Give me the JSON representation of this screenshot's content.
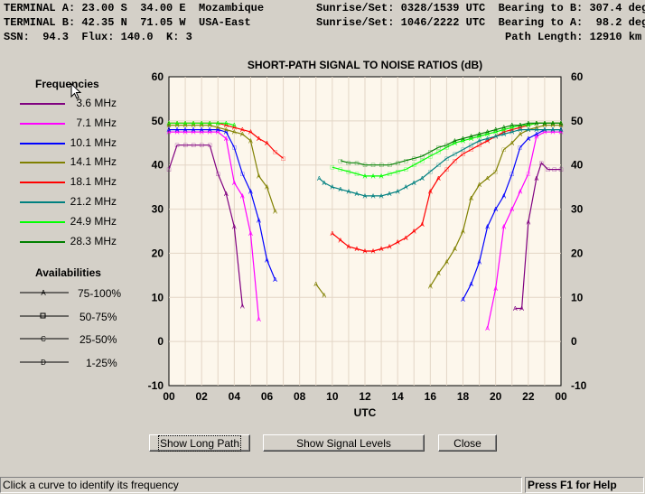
{
  "header": {
    "line1_left": "TERMINAL A: 23.00 S  34.00 E  Mozambique",
    "line1_right": "Sunrise/Set: 0328/1539 UTC  Bearing to B: 307.4 deg",
    "line2_left": "TERMINAL B: 42.35 N  71.05 W  USA-East",
    "line2_right": "Sunrise/Set: 1046/2222 UTC  Bearing to A:  98.2 deg",
    "line3_left": "SSN:  94.3  Flux: 140.0  K: 3",
    "line3_right": "Path Length: 12910 km"
  },
  "legend": {
    "frequencies_title": "Frequencies",
    "availabilities_title": "Availabilities",
    "availabilities": [
      {
        "label": "75-100%",
        "marker": "A"
      },
      {
        "label": "50-75%",
        "marker": "square"
      },
      {
        "label": "25-50%",
        "marker": "C"
      },
      {
        "label": "1-25%",
        "marker": "D"
      }
    ]
  },
  "buttons": {
    "long_path": "Show Long Path",
    "signal_levels": "Show Signal Levels",
    "close": "Close"
  },
  "status": {
    "left": "Click a curve to identify its frequency",
    "right": "Press F1 for Help"
  },
  "colors": {
    "plot_bg": "#fdf7ec",
    "grid": "#e3d6c6"
  },
  "chart_data": {
    "type": "line",
    "title": "SHORT-PATH SIGNAL TO NOISE RATIOS (dB)",
    "xlabel": "UTC",
    "ylabel": "",
    "xlim": [
      0,
      24
    ],
    "ylim": [
      -10,
      60
    ],
    "x_tick_labels": [
      "00",
      "02",
      "04",
      "06",
      "08",
      "10",
      "12",
      "14",
      "16",
      "18",
      "20",
      "22",
      "00"
    ],
    "y_ticks": [
      -10,
      0,
      10,
      20,
      30,
      40,
      50,
      60
    ],
    "grid": true,
    "series": [
      {
        "name": "3.6 MHz",
        "color": "#800080",
        "segments": [
          [
            [
              0,
              39
            ],
            [
              0.5,
              44.5
            ],
            [
              1,
              44.5
            ],
            [
              1.5,
              44.5
            ],
            [
              2,
              44.5
            ],
            [
              2.5,
              44.5
            ],
            [
              3,
              38
            ],
            [
              3.5,
              33.5
            ],
            [
              4,
              26
            ],
            [
              4.5,
              8
            ]
          ],
          [
            [
              21.2,
              7.5
            ],
            [
              21.6,
              7.5
            ],
            [
              22,
              27
            ],
            [
              22.5,
              37
            ],
            [
              22.8,
              40.5
            ],
            [
              23.2,
              39
            ],
            [
              23.6,
              39
            ],
            [
              24,
              39
            ]
          ]
        ]
      },
      {
        "name": "7.1 MHz",
        "color": "#ff00ff",
        "segments": [
          [
            [
              0,
              47.5
            ],
            [
              0.5,
              47.5
            ],
            [
              1,
              47.5
            ],
            [
              1.5,
              47.5
            ],
            [
              2,
              47.5
            ],
            [
              2.5,
              47.5
            ],
            [
              3,
              47.5
            ],
            [
              3.5,
              46
            ],
            [
              4,
              36
            ],
            [
              4.5,
              33
            ],
            [
              5,
              24.5
            ],
            [
              5.5,
              5
            ]
          ],
          [
            [
              19.5,
              3
            ],
            [
              20,
              12
            ],
            [
              20.5,
              26
            ],
            [
              21,
              30
            ],
            [
              21.5,
              34
            ],
            [
              22,
              38
            ],
            [
              22.5,
              46.5
            ],
            [
              23,
              47.5
            ],
            [
              23.5,
              47.5
            ],
            [
              24,
              47.5
            ]
          ]
        ]
      },
      {
        "name": "10.1 MHz",
        "color": "#0000ff",
        "segments": [
          [
            [
              0,
              48
            ],
            [
              0.5,
              48
            ],
            [
              1,
              48
            ],
            [
              1.5,
              48
            ],
            [
              2,
              48
            ],
            [
              2.5,
              48
            ],
            [
              3,
              48
            ],
            [
              3.5,
              47.5
            ],
            [
              4,
              44
            ],
            [
              4.5,
              38
            ],
            [
              5,
              34
            ],
            [
              5.5,
              27.5
            ],
            [
              6,
              18.5
            ],
            [
              6.5,
              14
            ]
          ],
          [
            [
              18,
              9.5
            ],
            [
              18.5,
              13
            ],
            [
              19,
              18
            ],
            [
              19.5,
              26
            ],
            [
              20,
              30
            ],
            [
              20.5,
              33
            ],
            [
              21,
              38
            ],
            [
              21.5,
              44
            ],
            [
              22,
              46
            ],
            [
              22.5,
              47
            ],
            [
              23,
              48
            ],
            [
              23.5,
              48
            ],
            [
              24,
              48
            ]
          ]
        ]
      },
      {
        "name": "14.1 MHz",
        "color": "#808000",
        "segments": [
          [
            [
              0,
              49
            ],
            [
              0.5,
              49
            ],
            [
              1,
              49
            ],
            [
              1.5,
              49
            ],
            [
              2,
              49
            ],
            [
              2.5,
              49
            ],
            [
              3,
              48.5
            ],
            [
              3.5,
              48
            ],
            [
              4,
              47.5
            ],
            [
              4.5,
              47
            ],
            [
              5,
              45.5
            ],
            [
              5.5,
              37.5
            ],
            [
              6,
              35
            ],
            [
              6.5,
              29.5
            ]
          ],
          [
            [
              9,
              13
            ],
            [
              9.5,
              10.5
            ]
          ],
          [
            [
              16,
              12.5
            ],
            [
              16.5,
              15.5
            ],
            [
              17,
              18
            ],
            [
              17.5,
              21
            ],
            [
              18,
              25
            ],
            [
              18.5,
              32.5
            ],
            [
              19,
              35.5
            ],
            [
              19.5,
              37
            ],
            [
              20,
              38.5
            ],
            [
              20.5,
              43.5
            ],
            [
              21,
              45
            ],
            [
              21.5,
              47
            ],
            [
              22,
              48
            ],
            [
              22.5,
              48.5
            ],
            [
              23,
              49
            ],
            [
              23.5,
              49
            ],
            [
              24,
              49
            ]
          ]
        ]
      },
      {
        "name": "18.1 MHz",
        "color": "#ff0000",
        "segments": [
          [
            [
              0,
              49.5
            ],
            [
              0.5,
              49.5
            ],
            [
              1,
              49.5
            ],
            [
              1.5,
              49.5
            ],
            [
              2,
              49.5
            ],
            [
              2.5,
              49.5
            ],
            [
              3,
              49.5
            ],
            [
              3.5,
              49
            ],
            [
              4,
              48.5
            ],
            [
              4.5,
              48
            ],
            [
              5,
              47.5
            ],
            [
              5.5,
              46
            ],
            [
              6,
              45
            ],
            [
              6.5,
              43
            ],
            [
              7,
              41.5
            ]
          ],
          [
            [
              10,
              24.5
            ],
            [
              10.5,
              23
            ],
            [
              11,
              21.5
            ],
            [
              11.5,
              21
            ],
            [
              12,
              20.5
            ],
            [
              12.5,
              20.5
            ],
            [
              13,
              21
            ],
            [
              13.5,
              21.5
            ],
            [
              14,
              22.5
            ],
            [
              14.5,
              23.5
            ],
            [
              15,
              25
            ],
            [
              15.5,
              26.5
            ],
            [
              16,
              34
            ],
            [
              16.5,
              37
            ],
            [
              17,
              39
            ],
            [
              17.5,
              41
            ],
            [
              18,
              42.5
            ],
            [
              18.5,
              43.5
            ],
            [
              19,
              44.5
            ],
            [
              19.5,
              45.5
            ],
            [
              20,
              46.5
            ],
            [
              20.5,
              47.5
            ],
            [
              21,
              48
            ],
            [
              21.5,
              48.5
            ],
            [
              22,
              49
            ],
            [
              22.5,
              49.5
            ],
            [
              23,
              49.5
            ],
            [
              23.5,
              49.5
            ],
            [
              24,
              49.5
            ]
          ]
        ]
      },
      {
        "name": "21.2 MHz",
        "color": "#008080",
        "segments": [
          [
            [
              9.2,
              37
            ],
            [
              9.5,
              36
            ],
            [
              10,
              35
            ],
            [
              10.5,
              34.5
            ],
            [
              11,
              34
            ],
            [
              11.5,
              33.5
            ],
            [
              12,
              33
            ],
            [
              12.5,
              33
            ],
            [
              13,
              33
            ],
            [
              13.5,
              33.5
            ],
            [
              14,
              34
            ],
            [
              14.5,
              35
            ],
            [
              15,
              36
            ],
            [
              15.5,
              37
            ],
            [
              16,
              38.5
            ],
            [
              16.5,
              40
            ],
            [
              17,
              41.5
            ],
            [
              17.5,
              42.5
            ],
            [
              18,
              43.5
            ],
            [
              18.5,
              44.5
            ],
            [
              19,
              45.5
            ],
            [
              19.5,
              46
            ],
            [
              20,
              46.5
            ],
            [
              20.5,
              47
            ],
            [
              21,
              47.5
            ],
            [
              21.5,
              48
            ],
            [
              22,
              48
            ],
            [
              22.5,
              48
            ],
            [
              23,
              48
            ],
            [
              23.5,
              48
            ],
            [
              24,
              48
            ]
          ]
        ]
      },
      {
        "name": "24.9 MHz",
        "color": "#00ff00",
        "segments": [
          [
            [
              0,
              49.5
            ],
            [
              0.5,
              49.5
            ],
            [
              1,
              49.5
            ],
            [
              1.5,
              49.5
            ],
            [
              2,
              49.5
            ],
            [
              2.5,
              49.5
            ],
            [
              3,
              49.5
            ],
            [
              3.5,
              49.5
            ],
            [
              4,
              49
            ]
          ],
          [
            [
              10,
              39.5
            ],
            [
              10.5,
              39
            ],
            [
              11,
              38.5
            ],
            [
              11.5,
              38
            ],
            [
              12,
              37.5
            ],
            [
              12.5,
              37.5
            ],
            [
              13,
              37.5
            ],
            [
              13.5,
              38
            ],
            [
              14,
              38.5
            ],
            [
              14.5,
              39
            ],
            [
              15,
              40
            ],
            [
              15.5,
              41
            ],
            [
              16,
              42
            ],
            [
              16.5,
              43
            ],
            [
              17,
              44
            ],
            [
              17.5,
              45
            ],
            [
              18,
              45.5
            ],
            [
              18.5,
              46
            ],
            [
              19,
              46.5
            ],
            [
              19.5,
              47
            ],
            [
              20,
              47.5
            ],
            [
              20.5,
              48
            ],
            [
              21,
              48.5
            ],
            [
              21.5,
              49
            ],
            [
              22,
              49
            ],
            [
              22.5,
              49.5
            ],
            [
              23,
              49.5
            ],
            [
              23.5,
              49.5
            ],
            [
              24,
              49.5
            ]
          ]
        ]
      },
      {
        "name": "28.3 MHz",
        "color": "#008000",
        "segments": [
          [
            [
              10.5,
              41
            ],
            [
              11,
              40.5
            ],
            [
              11.5,
              40.5
            ],
            [
              12,
              40
            ],
            [
              12.5,
              40
            ],
            [
              13,
              40
            ],
            [
              13.5,
              40
            ],
            [
              14,
              40.5
            ],
            [
              14.5,
              41
            ],
            [
              15,
              41.5
            ],
            [
              15.5,
              42
            ],
            [
              16,
              43
            ],
            [
              16.5,
              44
            ],
            [
              17,
              44.5
            ],
            [
              17.5,
              45.5
            ],
            [
              18,
              46
            ],
            [
              18.5,
              46.5
            ],
            [
              19,
              47
            ],
            [
              19.5,
              47.5
            ],
            [
              20,
              48
            ],
            [
              20.5,
              48.5
            ],
            [
              21,
              49
            ],
            [
              21.5,
              49
            ],
            [
              22,
              49.5
            ],
            [
              22.5,
              49.5
            ],
            [
              23,
              49.5
            ],
            [
              23.5,
              49.5
            ],
            [
              24,
              49.5
            ]
          ]
        ]
      }
    ]
  }
}
